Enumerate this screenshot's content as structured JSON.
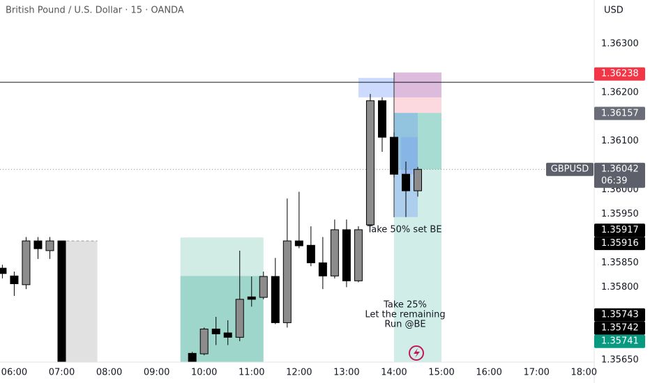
{
  "chart_data": {
    "type": "candlestick",
    "title": "British Pound / U.S. Dollar · 15 · OANDA",
    "currency": "USD",
    "x": [
      "05:45",
      "06:00",
      "06:15",
      "06:30",
      "06:45",
      "07:00",
      "09:45",
      "10:00",
      "10:15",
      "10:30",
      "10:45",
      "11:00",
      "11:15",
      "11:30",
      "11:45",
      "12:00",
      "12:15",
      "12:30",
      "12:45",
      "13:00",
      "13:15",
      "13:30",
      "13:45",
      "14:00",
      "14:15",
      "14:30"
    ],
    "open": [
      1.35839,
      1.35823,
      1.35805,
      1.35895,
      1.35875,
      1.35895,
      1.35664,
      1.35663,
      1.35714,
      1.35706,
      1.35697,
      1.3578,
      1.35779,
      1.35822,
      1.35727,
      1.35895,
      1.35886,
      1.3585,
      1.35823,
      1.35918,
      1.35813,
      1.35928,
      1.36183,
      1.36108,
      1.36032,
      1.35998
    ],
    "high": [
      1.35846,
      1.35832,
      1.35903,
      1.35903,
      1.35903,
      1.35895,
      1.35667,
      1.35717,
      1.35739,
      1.35732,
      1.35875,
      1.35822,
      1.35832,
      1.3586,
      1.35982,
      1.35996,
      1.35925,
      1.35903,
      1.35939,
      1.35939,
      1.35925,
      1.36197,
      1.3619,
      1.36118,
      1.36058,
      1.36047
    ],
    "low": [
      1.35818,
      1.35782,
      1.35796,
      1.35858,
      1.35858,
      1.35646,
      1.35646,
      1.3566,
      1.35681,
      1.35681,
      1.35689,
      1.3576,
      1.35775,
      1.35724,
      1.35717,
      1.3588,
      1.35843,
      1.35796,
      1.35818,
      1.358,
      1.3581,
      1.35925,
      1.36078,
      1.36025,
      1.35944,
      1.35986
    ],
    "close": [
      1.35828,
      1.35807,
      1.35895,
      1.35879,
      1.35895,
      1.35646,
      1.35646,
      1.35714,
      1.35704,
      1.35697,
      1.35775,
      1.35775,
      1.35822,
      1.35727,
      1.35895,
      1.35885,
      1.3585,
      1.35823,
      1.35918,
      1.35813,
      1.35918,
      1.36183,
      1.36108,
      1.36032,
      1.35998,
      1.36042
    ],
    "up_color": "#8c8c8c",
    "down_color": "#000000",
    "xlim": [
      "05:42",
      "18:13"
    ],
    "xticks": [
      "06:00",
      "07:00",
      "08:00",
      "09:00",
      "10:00",
      "11:00",
      "12:00",
      "13:00",
      "14:00",
      "15:00",
      "16:00",
      "17:00",
      "18:00"
    ],
    "ylim": [
      1.35646,
      1.3639
    ],
    "yticks": [
      {
        "value": 1.363,
        "label": "1.36300"
      },
      {
        "value": 1.362,
        "label": "1.36200"
      },
      {
        "value": 1.361,
        "label": "1.36100"
      },
      {
        "value": 1.36,
        "label": "1.36000"
      },
      {
        "value": 1.3595,
        "label": "1.35950"
      },
      {
        "value": 1.3585,
        "label": "1.35850"
      },
      {
        "value": 1.358,
        "label": "1.35800"
      },
      {
        "value": 1.3565,
        "label": "1.35650"
      }
    ],
    "zones": [
      {
        "x0": "07:00",
        "x1": "07:45",
        "y0": 1.35646,
        "y1": 1.35895,
        "color": "rgba(200,200,200,0.55)"
      },
      {
        "x0": "09:30",
        "x1": "11:15",
        "y0": 1.35823,
        "y1": 1.35902,
        "color": "rgba(120,200,180,0.35)"
      },
      {
        "x0": "09:30",
        "x1": "11:15",
        "y0": 1.35646,
        "y1": 1.35823,
        "color": "rgba(80,180,160,0.55)"
      },
      {
        "x0": "13:15",
        "x1": "14:00",
        "y0": 1.3619,
        "y1": 1.3623,
        "color": "rgba(110,150,250,0.35)"
      },
      {
        "x0": "14:00",
        "x1": "15:00",
        "y0": 1.36158,
        "y1": 1.36241,
        "color": "rgba(245,160,175,0.4)"
      },
      {
        "x0": "14:00",
        "x1": "15:00",
        "y0": 1.3619,
        "y1": 1.36241,
        "color": "rgba(150,120,220,0.3)"
      },
      {
        "x0": "14:00",
        "x1": "15:00",
        "y0": 1.36042,
        "y1": 1.36158,
        "color": "rgba(80,185,165,0.5)"
      },
      {
        "x0": "14:00",
        "x1": "15:00",
        "y0": 1.35646,
        "y1": 1.36042,
        "color": "rgba(120,205,185,0.35)"
      },
      {
        "x0": "14:00",
        "x1": "14:30",
        "y0": 1.35944,
        "y1": 1.36158,
        "color": "rgba(110,150,250,0.35)"
      },
      {
        "x0": "14:09",
        "x1": "14:30",
        "y0": 1.36032,
        "y1": 1.36108,
        "color": "rgba(110,150,250,0.3)"
      }
    ],
    "horizontal_line": 1.36221,
    "last_price": {
      "symbol": "GBPUSD",
      "value": 1.36042,
      "countdown": "06:39",
      "color": "#5d606b"
    },
    "price_labels": [
      {
        "value": 1.36238,
        "color": "#f23645"
      },
      {
        "value": 1.36157,
        "color": "#6a6d78"
      },
      {
        "value": 1.35917,
        "color": "#000000"
      },
      {
        "value": 1.35916,
        "color": "#000000"
      },
      {
        "value": 1.35743,
        "color": "#000000"
      },
      {
        "value": 1.35742,
        "color": "#000000"
      },
      {
        "value": 1.35741,
        "color": "#089981"
      }
    ],
    "annotations": [
      "Take 50% set BE",
      "Take 25%",
      "Let the remaining",
      "Run @BE"
    ]
  }
}
